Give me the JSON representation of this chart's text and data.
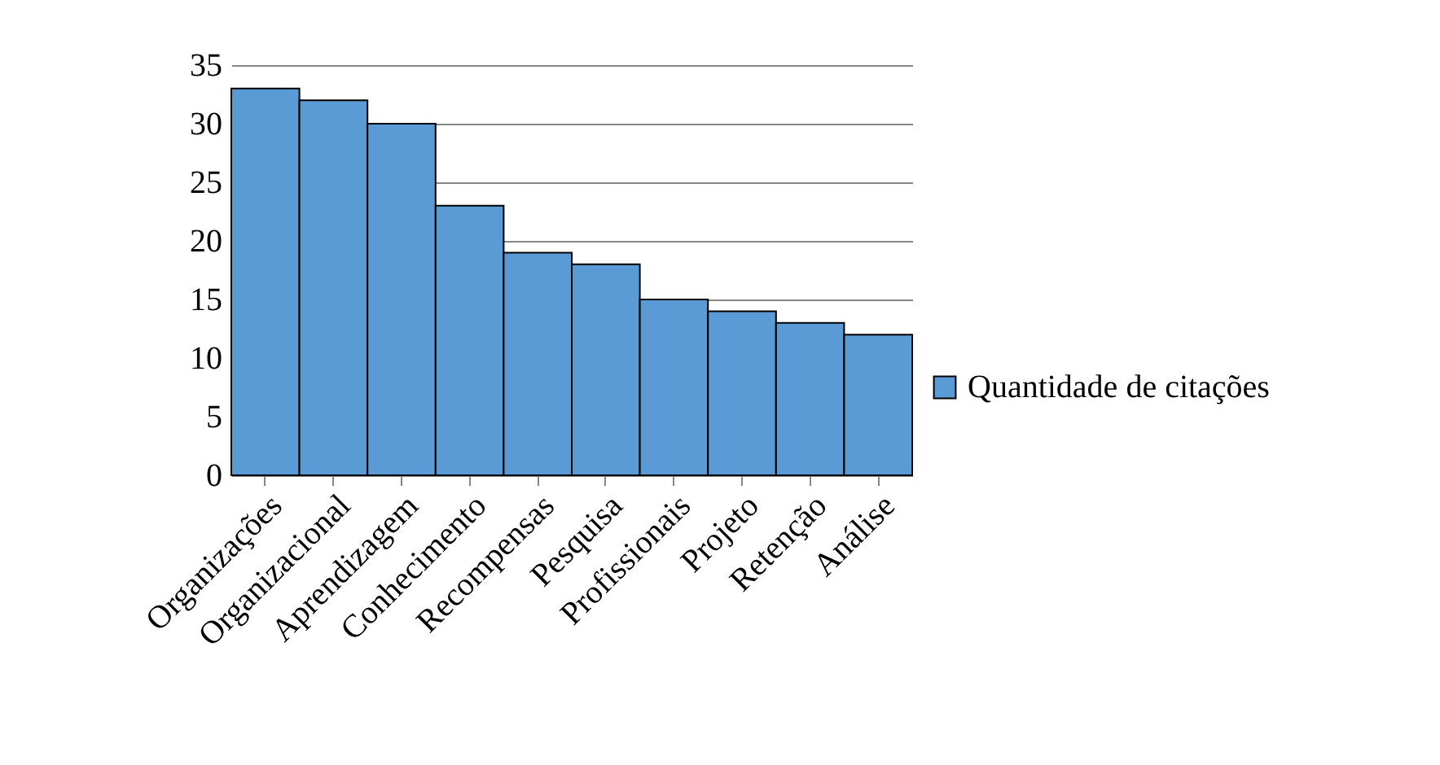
{
  "chart_data": {
    "type": "bar",
    "categories": [
      "Organizações",
      "Organizacional",
      "Aprendizagem",
      "Conhecimento",
      "Recompensas",
      "Pesquisa",
      "Profissionais",
      "Projeto",
      "Retenção",
      "Análise"
    ],
    "series": [
      {
        "name": "Quantidade de citações",
        "color": "#5b9bd5",
        "values": [
          33,
          32,
          30,
          23,
          19,
          18,
          15,
          14,
          13,
          12
        ]
      }
    ],
    "ylim": [
      0,
      35
    ],
    "yticks": [
      0,
      5,
      10,
      15,
      20,
      25,
      30,
      35
    ],
    "grid": "y",
    "legend": "right"
  }
}
